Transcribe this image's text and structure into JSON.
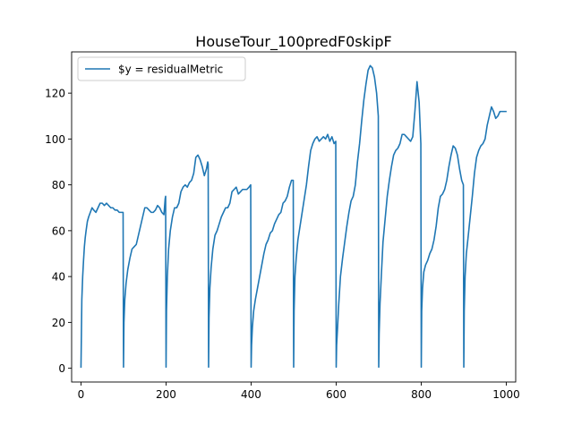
{
  "chart_data": {
    "type": "line",
    "title": "HouseTour_100predF0skipF",
    "xlabel": "",
    "ylabel": "",
    "xlim": [
      -22,
      1022
    ],
    "ylim": [
      -6,
      138
    ],
    "x_ticks": [
      0,
      200,
      400,
      600,
      800,
      1000
    ],
    "y_ticks": [
      0,
      20,
      40,
      60,
      80,
      100,
      120
    ],
    "grid": false,
    "legend": {
      "placement": "top-left",
      "entries": [
        "$y = residualMetric"
      ]
    },
    "series": [
      {
        "name": "$y = residualMetric",
        "color": "#1f77b4",
        "x": [
          0,
          1,
          2,
          4,
          6,
          8,
          10,
          12,
          15,
          18,
          22,
          26,
          30,
          35,
          40,
          45,
          50,
          55,
          60,
          65,
          70,
          75,
          80,
          85,
          90,
          95,
          99,
          100,
          101,
          103,
          106,
          110,
          115,
          120,
          125,
          130,
          135,
          140,
          145,
          150,
          155,
          160,
          165,
          170,
          175,
          180,
          185,
          190,
          195,
          198,
          199,
          200,
          201,
          203,
          206,
          210,
          215,
          220,
          225,
          230,
          235,
          240,
          245,
          250,
          255,
          260,
          265,
          270,
          275,
          280,
          285,
          290,
          295,
          298,
          299,
          300,
          301,
          303,
          306,
          310,
          315,
          320,
          325,
          330,
          335,
          340,
          345,
          350,
          355,
          360,
          365,
          370,
          375,
          380,
          385,
          390,
          395,
          399,
          400,
          401,
          403,
          406,
          410,
          415,
          420,
          425,
          430,
          435,
          440,
          445,
          450,
          455,
          460,
          465,
          470,
          475,
          480,
          485,
          490,
          495,
          499,
          500,
          501,
          503,
          506,
          510,
          515,
          520,
          525,
          530,
          535,
          540,
          545,
          550,
          555,
          560,
          565,
          570,
          575,
          580,
          585,
          590,
          595,
          599,
          600,
          601,
          603,
          606,
          610,
          615,
          620,
          625,
          630,
          635,
          640,
          645,
          650,
          655,
          660,
          665,
          670,
          675,
          680,
          685,
          690,
          695,
          699,
          700,
          701,
          703,
          706,
          710,
          715,
          720,
          725,
          730,
          735,
          740,
          745,
          750,
          755,
          760,
          765,
          770,
          775,
          780,
          785,
          790,
          795,
          799,
          800,
          801,
          803,
          806,
          810,
          815,
          820,
          825,
          830,
          835,
          840,
          845,
          850,
          855,
          860,
          865,
          870,
          875,
          880,
          885,
          890,
          895,
          899,
          900,
          901,
          903,
          906,
          910,
          915,
          920,
          925,
          930,
          935,
          940,
          945,
          950,
          955,
          960,
          965,
          970,
          975,
          980,
          985,
          990,
          995,
          999
        ],
        "y": [
          0.5,
          15,
          30,
          40,
          47,
          53,
          57,
          60,
          64,
          66,
          68,
          70,
          69,
          68,
          70,
          72,
          72,
          71,
          72,
          71,
          70,
          70,
          69,
          69,
          68,
          68,
          68,
          0.5,
          20,
          30,
          37,
          43,
          48,
          52,
          53,
          54,
          58,
          62,
          66,
          70,
          70,
          69,
          68,
          68,
          69,
          71,
          70,
          68,
          67,
          74,
          75,
          0.5,
          25,
          40,
          52,
          60,
          66,
          70,
          70,
          72,
          77,
          79,
          80,
          79,
          81,
          82,
          85,
          92,
          93,
          91,
          88,
          84,
          87,
          90,
          89,
          0.5,
          22,
          35,
          44,
          52,
          58,
          60,
          63,
          66,
          68,
          70,
          70,
          72,
          77,
          78,
          79,
          76,
          77,
          78,
          78,
          78,
          79,
          80,
          0.5,
          10,
          18,
          25,
          30,
          35,
          40,
          45,
          50,
          54,
          56,
          59,
          60,
          63,
          65,
          67,
          68,
          72,
          73,
          75,
          79,
          82,
          82,
          0.5,
          25,
          40,
          48,
          56,
          62,
          68,
          74,
          80,
          88,
          95,
          98,
          100,
          101,
          99,
          100,
          101,
          100,
          102,
          99,
          101,
          98,
          99,
          0.5,
          10,
          17,
          28,
          40,
          48,
          55,
          62,
          68,
          73,
          75,
          80,
          90,
          98,
          108,
          117,
          124,
          130,
          132,
          131,
          127,
          120,
          110,
          0.5,
          15,
          28,
          40,
          55,
          65,
          75,
          82,
          88,
          93,
          95,
          96,
          98,
          102,
          102,
          101,
          100,
          99,
          101,
          112,
          125,
          116,
          98,
          0.5,
          25,
          35,
          42,
          45,
          47,
          50,
          52,
          56,
          62,
          70,
          75,
          76,
          78,
          82,
          88,
          93,
          97,
          96,
          93,
          87,
          82,
          80,
          0.5,
          25,
          40,
          50,
          57,
          66,
          75,
          85,
          92,
          95,
          97,
          98,
          100,
          106,
          110,
          114,
          112,
          109,
          110,
          112,
          112,
          112,
          112
        ]
      }
    ]
  }
}
